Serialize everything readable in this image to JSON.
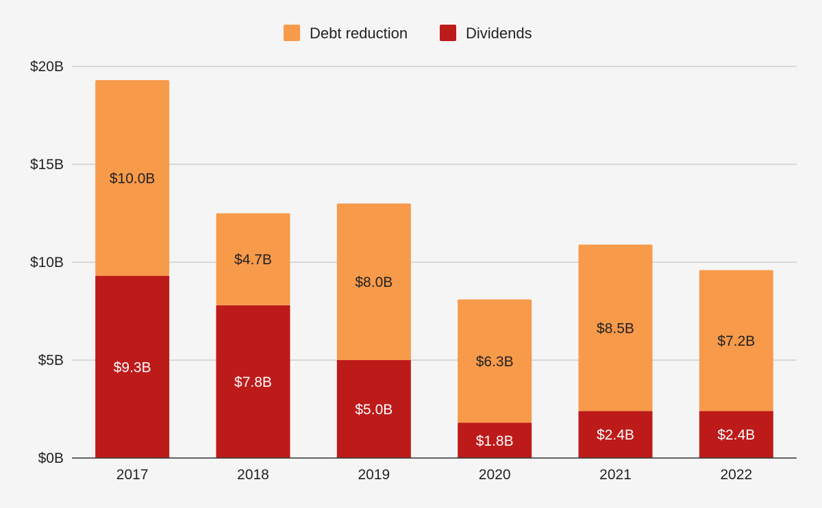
{
  "chart_data": {
    "type": "bar",
    "stacked": true,
    "categories": [
      "2017",
      "2018",
      "2019",
      "2020",
      "2021",
      "2022"
    ],
    "series": [
      {
        "name": "Dividends",
        "color": "#bd1a1a",
        "label_color": "#ffffff",
        "values": [
          9.3,
          7.8,
          5.0,
          1.8,
          2.4,
          2.4
        ],
        "labels": [
          "$9.3B",
          "$7.8B",
          "$5.0B",
          "$1.8B",
          "$2.4B",
          "$2.4B"
        ]
      },
      {
        "name": "Debt reduction",
        "color": "#f79a4a",
        "label_color": "#222222",
        "values": [
          10.0,
          4.7,
          8.0,
          6.3,
          8.5,
          7.2
        ],
        "labels": [
          "$10.0B",
          "$4.7B",
          "$8.0B",
          "$6.3B",
          "$8.5B",
          "$7.2B"
        ]
      }
    ],
    "legend_order": [
      "Debt reduction",
      "Dividends"
    ],
    "legend_position": "top",
    "y_ticks": [
      0,
      5,
      10,
      15,
      20
    ],
    "y_tick_labels": [
      "$0B",
      "$5B",
      "$10B",
      "$15B",
      "$20B"
    ],
    "ylim": [
      0,
      20
    ],
    "grid": true,
    "title": "",
    "xlabel": "",
    "ylabel": ""
  }
}
